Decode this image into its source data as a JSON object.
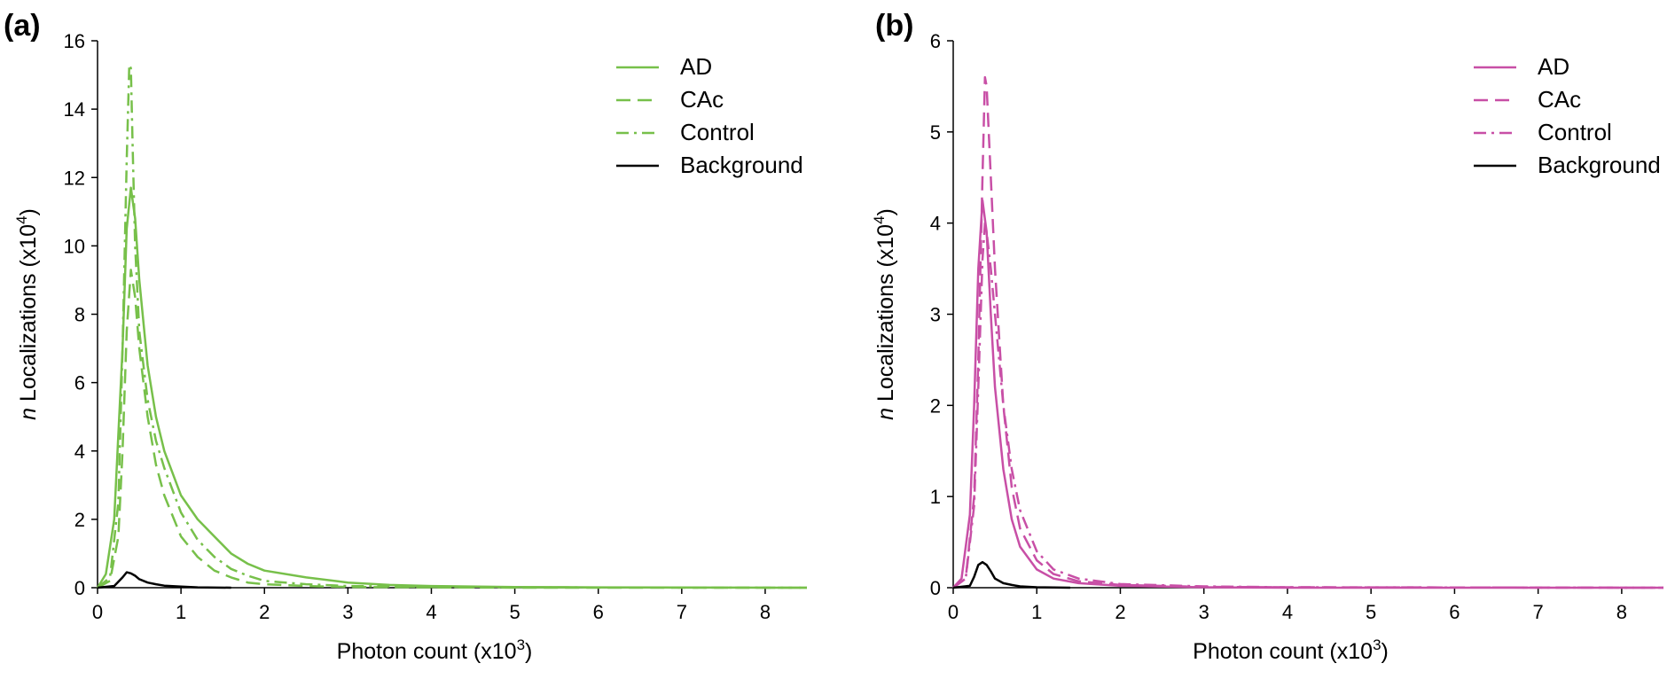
{
  "chart_data": [
    {
      "type": "line",
      "panel_label": "(a)",
      "xlabel": "Photon count (x10",
      "xlabel_sup": "3",
      "xlabel_end": ")",
      "ylabel_italic": "n",
      "ylabel": " Localizations (x10",
      "ylabel_sup": "4",
      "ylabel_end": ")",
      "xlim": [
        0,
        8.5
      ],
      "ylim": [
        0,
        16
      ],
      "xticks": [
        0,
        1,
        2,
        3,
        4,
        5,
        6,
        7,
        8
      ],
      "yticks": [
        0,
        2,
        4,
        6,
        8,
        10,
        12,
        14,
        16
      ],
      "legend_position": "top-right",
      "grid": false,
      "series": [
        {
          "name": "AD",
          "color": "#77c04a",
          "dash": "solid",
          "x": [
            0,
            0.1,
            0.2,
            0.3,
            0.35,
            0.4,
            0.45,
            0.5,
            0.6,
            0.7,
            0.8,
            1.0,
            1.2,
            1.4,
            1.6,
            1.8,
            2.0,
            2.5,
            3.0,
            3.5,
            4.0,
            5.0,
            6.0,
            7.0,
            8.5
          ],
          "y": [
            0,
            0.4,
            2.0,
            7.0,
            10.5,
            11.7,
            10.8,
            9.0,
            6.5,
            5.0,
            4.0,
            2.7,
            2.0,
            1.5,
            1.0,
            0.7,
            0.5,
            0.3,
            0.15,
            0.08,
            0.05,
            0.02,
            0.01,
            0.005,
            0
          ]
        },
        {
          "name": "CAc",
          "color": "#77c04a",
          "dash": "dashed",
          "x": [
            0,
            0.15,
            0.25,
            0.3,
            0.35,
            0.4,
            0.45,
            0.5,
            0.6,
            0.7,
            0.8,
            1.0,
            1.2,
            1.4,
            1.6,
            1.8,
            2.0,
            2.5,
            3.0,
            4.0,
            5.0,
            8.5
          ],
          "y": [
            0,
            0.2,
            1.5,
            4.0,
            7.5,
            9.3,
            8.5,
            7.0,
            5.0,
            3.6,
            2.7,
            1.5,
            0.9,
            0.5,
            0.3,
            0.15,
            0.1,
            0.05,
            0.02,
            0.01,
            0,
            0
          ]
        },
        {
          "name": "Control",
          "color": "#77c04a",
          "dash": "dashdot",
          "x": [
            0,
            0.15,
            0.25,
            0.3,
            0.35,
            0.38,
            0.4,
            0.42,
            0.45,
            0.5,
            0.6,
            0.7,
            0.8,
            1.0,
            1.2,
            1.4,
            1.6,
            1.8,
            2.0,
            2.5,
            3.0,
            4.0,
            5.0,
            8.5
          ],
          "y": [
            0,
            0.3,
            2.5,
            7.0,
            12.5,
            15.3,
            15.2,
            13.0,
            10.0,
            7.5,
            5.5,
            4.3,
            3.5,
            2.2,
            1.4,
            0.9,
            0.55,
            0.35,
            0.2,
            0.1,
            0.05,
            0.02,
            0.01,
            0
          ]
        },
        {
          "name": "Background",
          "color": "#000000",
          "dash": "solid",
          "x": [
            0,
            0.2,
            0.3,
            0.35,
            0.4,
            0.45,
            0.5,
            0.6,
            0.7,
            0.8,
            1.0,
            1.2,
            1.6
          ],
          "y": [
            0,
            0.05,
            0.3,
            0.45,
            0.42,
            0.35,
            0.25,
            0.15,
            0.1,
            0.06,
            0.03,
            0.01,
            0
          ]
        }
      ]
    },
    {
      "type": "line",
      "panel_label": "(b)",
      "xlabel": "Photon count (x10",
      "xlabel_sup": "3",
      "xlabel_end": ")",
      "ylabel_italic": "n",
      "ylabel": " Localizations (x10",
      "ylabel_sup": "4",
      "ylabel_end": ")",
      "xlim": [
        0,
        8.5
      ],
      "ylim": [
        0,
        6
      ],
      "xticks": [
        0,
        1,
        2,
        3,
        4,
        5,
        6,
        7,
        8
      ],
      "yticks": [
        0,
        1,
        2,
        3,
        4,
        5,
        6
      ],
      "legend_position": "top-right",
      "grid": false,
      "series": [
        {
          "name": "AD",
          "color": "#c84fa6",
          "dash": "solid",
          "x": [
            0,
            0.1,
            0.2,
            0.25,
            0.3,
            0.35,
            0.4,
            0.45,
            0.5,
            0.6,
            0.7,
            0.8,
            1.0,
            1.2,
            1.5,
            2.0,
            3.0,
            4.0,
            8.5
          ],
          "y": [
            0,
            0.1,
            0.8,
            2.0,
            3.5,
            4.25,
            3.9,
            3.0,
            2.2,
            1.3,
            0.75,
            0.45,
            0.2,
            0.1,
            0.05,
            0.02,
            0.005,
            0,
            0
          ]
        },
        {
          "name": "CAc",
          "color": "#c84fa6",
          "dash": "dashed",
          "x": [
            0,
            0.15,
            0.25,
            0.3,
            0.35,
            0.38,
            0.4,
            0.45,
            0.5,
            0.6,
            0.7,
            0.8,
            1.0,
            1.2,
            1.5,
            2.0,
            3.0,
            4.0,
            8.5
          ],
          "y": [
            0,
            0.1,
            1.0,
            2.5,
            4.5,
            5.6,
            5.5,
            4.5,
            3.5,
            2.0,
            1.1,
            0.65,
            0.3,
            0.15,
            0.07,
            0.03,
            0.01,
            0.005,
            0
          ]
        },
        {
          "name": "Control",
          "color": "#c84fa6",
          "dash": "dashdot",
          "x": [
            0,
            0.15,
            0.25,
            0.3,
            0.35,
            0.38,
            0.4,
            0.45,
            0.5,
            0.6,
            0.7,
            0.8,
            1.0,
            1.2,
            1.5,
            2.0,
            3.0,
            4.0,
            8.5
          ],
          "y": [
            0,
            0.1,
            0.9,
            2.2,
            3.6,
            4.0,
            3.9,
            3.5,
            3.0,
            2.0,
            1.3,
            0.85,
            0.4,
            0.2,
            0.1,
            0.04,
            0.015,
            0.005,
            0
          ]
        },
        {
          "name": "Background",
          "color": "#000000",
          "dash": "solid",
          "x": [
            0,
            0.2,
            0.25,
            0.3,
            0.35,
            0.4,
            0.45,
            0.5,
            0.6,
            0.7,
            0.8,
            1.0,
            1.4
          ],
          "y": [
            0,
            0.02,
            0.12,
            0.25,
            0.28,
            0.25,
            0.18,
            0.1,
            0.05,
            0.03,
            0.015,
            0.005,
            0
          ]
        }
      ]
    }
  ]
}
